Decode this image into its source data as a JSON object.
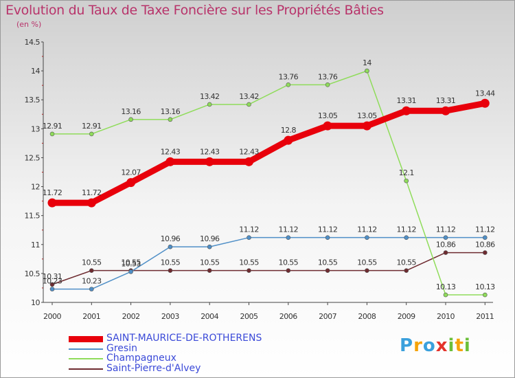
{
  "chart_data": {
    "type": "line",
    "title": "Evolution du Taux de Taxe Foncière sur les Propriétés Bâties",
    "ylabel": "(en %)",
    "xlabel": "",
    "categories": [
      "2000",
      "2001",
      "2002",
      "2003",
      "2004",
      "2005",
      "2006",
      "2007",
      "2008",
      "2009",
      "2010",
      "2011"
    ],
    "y_ticks": [
      "10",
      "10.5",
      "11",
      "11.5",
      "12",
      "12.5",
      "13",
      "13.5",
      "14",
      "14.5"
    ],
    "ylim": [
      10,
      14.5
    ],
    "series": [
      {
        "name": "SAINT-MAURICE-DE-ROTHERENS",
        "color": "#e8000b",
        "values": [
          11.72,
          11.72,
          12.07,
          12.43,
          12.43,
          12.43,
          12.8,
          13.05,
          13.05,
          13.31,
          13.31,
          13.44
        ],
        "labels": [
          "11.72",
          "11.72",
          "12.07",
          "12.43",
          "12.43",
          "12.43",
          "12.8",
          "13.05",
          "13.05",
          "13.31",
          "13.31",
          "13.44"
        ]
      },
      {
        "name": "Gresin",
        "color": "#4f8fc7",
        "values": [
          10.23,
          10.23,
          10.53,
          10.96,
          10.96,
          11.12,
          11.12,
          11.12,
          11.12,
          11.12,
          11.12,
          11.12
        ],
        "labels": [
          "10.23",
          "10.23",
          "10.53",
          "10.96",
          "10.96",
          "11.12",
          "11.12",
          "11.12",
          "11.12",
          "11.12",
          "11.12",
          "11.12"
        ]
      },
      {
        "name": "Champagneux",
        "color": "#8fdc5a",
        "values": [
          12.91,
          12.91,
          13.16,
          13.16,
          13.42,
          13.42,
          13.76,
          13.76,
          14,
          12.1,
          10.13,
          10.13
        ],
        "labels": [
          "12.91",
          "12.91",
          "13.16",
          "13.16",
          "13.42",
          "13.42",
          "13.76",
          "13.76",
          "14",
          "12.1",
          "10.13",
          "10.13"
        ]
      },
      {
        "name": "Saint-Pierre-d'Alvey",
        "color": "#6e2b30",
        "values": [
          10.31,
          10.55,
          10.55,
          10.55,
          10.55,
          10.55,
          10.55,
          10.55,
          10.55,
          10.55,
          10.86,
          10.86
        ],
        "labels": [
          "10.31",
          "10.55",
          "10.55",
          "10.55",
          "10.55",
          "10.55",
          "10.55",
          "10.55",
          "10.55",
          "10.55",
          "10.86",
          "10.86"
        ]
      }
    ]
  },
  "logo": {
    "letters": [
      "P",
      "r",
      "o",
      "x",
      "i",
      "t",
      "i"
    ],
    "colors": [
      "#3aa0dc",
      "#f5a30a",
      "#3aa0dc",
      "#e4322b",
      "#6bbf3a",
      "#f5a30a",
      "#6bbf3a"
    ]
  }
}
